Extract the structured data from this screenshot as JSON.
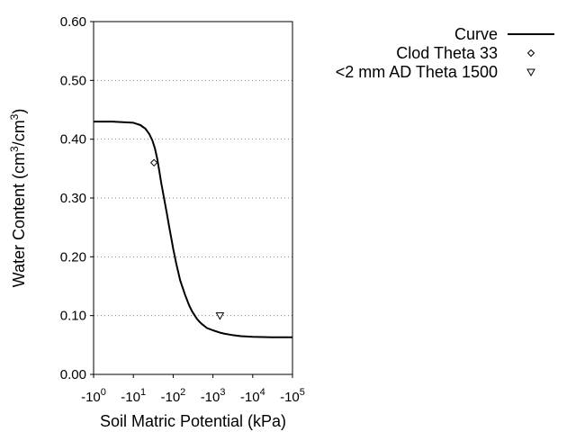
{
  "chart_data": {
    "type": "scatter",
    "title": "",
    "xlabel": "Soil Matric Potential (kPa)",
    "ylabel": {
      "prefix": "Water Content (cm",
      "sup1": "3",
      "mid": "/cm",
      "sup2": "3",
      "suffix": ")"
    },
    "x_scale": "log",
    "xlim": [
      1,
      100000
    ],
    "ylim": [
      0,
      0.6
    ],
    "grid": "horizontal-dotted",
    "legend_position": "top-right",
    "x_ticks": [
      {
        "value": 1,
        "base": "-10",
        "exp": "0"
      },
      {
        "value": 10,
        "base": "-10",
        "exp": "1"
      },
      {
        "value": 100,
        "base": "-10",
        "exp": "2"
      },
      {
        "value": 1000,
        "base": "-10",
        "exp": "3"
      },
      {
        "value": 10000,
        "base": "-10",
        "exp": "4"
      },
      {
        "value": 100000,
        "base": "-10",
        "exp": "5"
      }
    ],
    "y_ticks": [
      {
        "value": 0.0,
        "label": "0.00"
      },
      {
        "value": 0.1,
        "label": "0.10"
      },
      {
        "value": 0.2,
        "label": "0.20"
      },
      {
        "value": 0.3,
        "label": "0.30"
      },
      {
        "value": 0.4,
        "label": "0.40"
      },
      {
        "value": 0.5,
        "label": "0.50"
      },
      {
        "value": 0.6,
        "label": "0.60"
      }
    ],
    "series": [
      {
        "name": "Curve",
        "kind": "line",
        "color": "#000000",
        "x": [
          1,
          3,
          10,
          15,
          20,
          25,
          30,
          35,
          40,
          45,
          50,
          60,
          70,
          80,
          90,
          100,
          120,
          150,
          200,
          250,
          300,
          400,
          500,
          700,
          1000,
          1500,
          2000,
          3000,
          5000,
          10000,
          30000,
          100000
        ],
        "y": [
          0.43,
          0.43,
          0.428,
          0.424,
          0.418,
          0.409,
          0.398,
          0.384,
          0.366,
          0.345,
          0.326,
          0.297,
          0.272,
          0.25,
          0.231,
          0.214,
          0.188,
          0.16,
          0.135,
          0.118,
          0.107,
          0.094,
          0.087,
          0.079,
          0.075,
          0.071,
          0.069,
          0.067,
          0.065,
          0.064,
          0.063,
          0.063
        ]
      },
      {
        "name": "Clod Theta 33",
        "kind": "points",
        "marker": "diamond",
        "color": "#000000",
        "x": [
          33
        ],
        "y": [
          0.36
        ]
      },
      {
        "name": "<2 mm AD Theta 1500",
        "kind": "points",
        "marker": "triangle-down",
        "color": "#000000",
        "x": [
          1500
        ],
        "y": [
          0.1
        ]
      }
    ]
  }
}
